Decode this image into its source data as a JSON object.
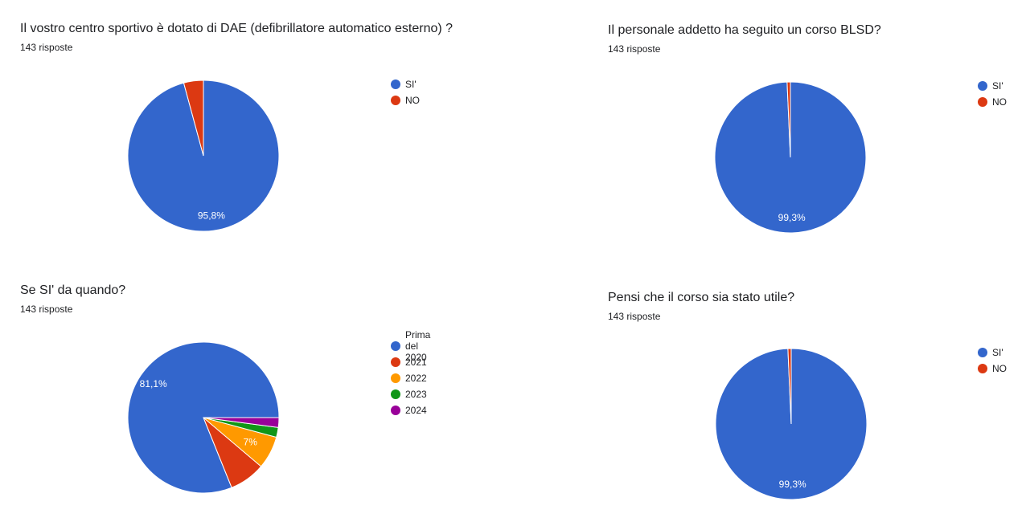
{
  "chart_data": [
    {
      "type": "pie",
      "title": "Il vostro centro sportivo è dotato di DAE (defibrillatore automatico esterno) ?",
      "subtitle": "143 risposte",
      "categories": [
        "SI'",
        "NO"
      ],
      "values": [
        95.8,
        4.2
      ],
      "data_labels": [
        "95,8%",
        ""
      ],
      "colors": [
        "#3366cc",
        "#dc3912"
      ],
      "legend_position": "right"
    },
    {
      "type": "pie",
      "title": "Il personale addetto ha seguito un corso BLSD?",
      "subtitle": "143 risposte",
      "categories": [
        "SI'",
        "NO"
      ],
      "values": [
        99.3,
        0.7
      ],
      "data_labels": [
        "99,3%",
        ""
      ],
      "colors": [
        "#3366cc",
        "#dc3912"
      ],
      "legend_position": "right"
    },
    {
      "type": "pie",
      "title": "Se SI' da quando?",
      "subtitle": "143 risposte",
      "categories": [
        "Prima del 2020",
        "2021",
        "2022",
        "2023",
        "2024"
      ],
      "values": [
        81.1,
        7.7,
        7.0,
        2.1,
        2.1
      ],
      "data_labels": [
        "81,1%",
        "",
        "7%",
        "",
        ""
      ],
      "colors": [
        "#3366cc",
        "#dc3912",
        "#ff9900",
        "#109618",
        "#990099"
      ],
      "legend_position": "right"
    },
    {
      "type": "pie",
      "title": "Pensi che il corso sia stato utile?",
      "subtitle": "143 risposte",
      "categories": [
        "SI'",
        "NO"
      ],
      "values": [
        99.3,
        0.7
      ],
      "data_labels": [
        "99,3%",
        ""
      ],
      "colors": [
        "#3366cc",
        "#dc3912"
      ],
      "legend_position": "right"
    }
  ]
}
